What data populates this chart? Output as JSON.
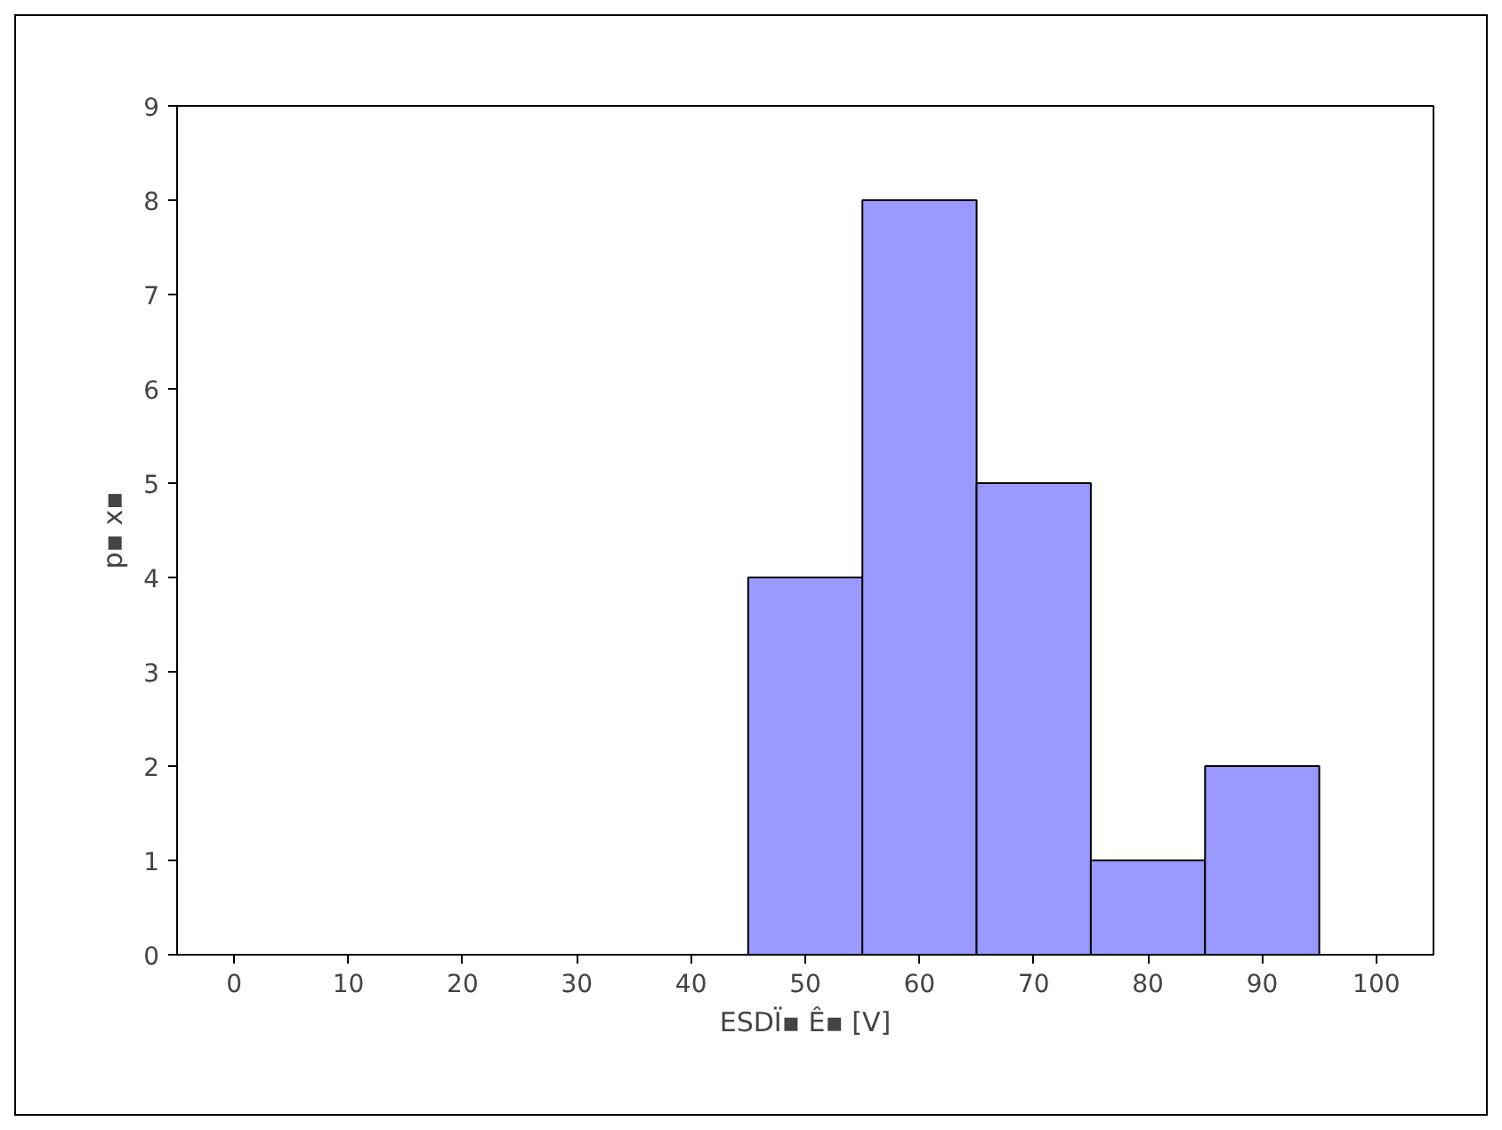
{
  "chart_data": {
    "type": "bar",
    "xlabel": "ESDÏ▪ Ê▪ [V]",
    "ylabel": "p▪ x▪",
    "categories": [
      "0",
      "10",
      "20",
      "30",
      "40",
      "50",
      "60",
      "70",
      "80",
      "90",
      "100"
    ],
    "values": [
      0,
      0,
      0,
      0,
      0,
      4,
      8,
      5,
      1,
      2,
      0
    ],
    "color": "#9999ff",
    "ylim": [
      0,
      9
    ],
    "yticks": [
      0,
      1,
      2,
      3,
      4,
      5,
      6,
      7,
      8,
      9
    ],
    "grid": false
  }
}
